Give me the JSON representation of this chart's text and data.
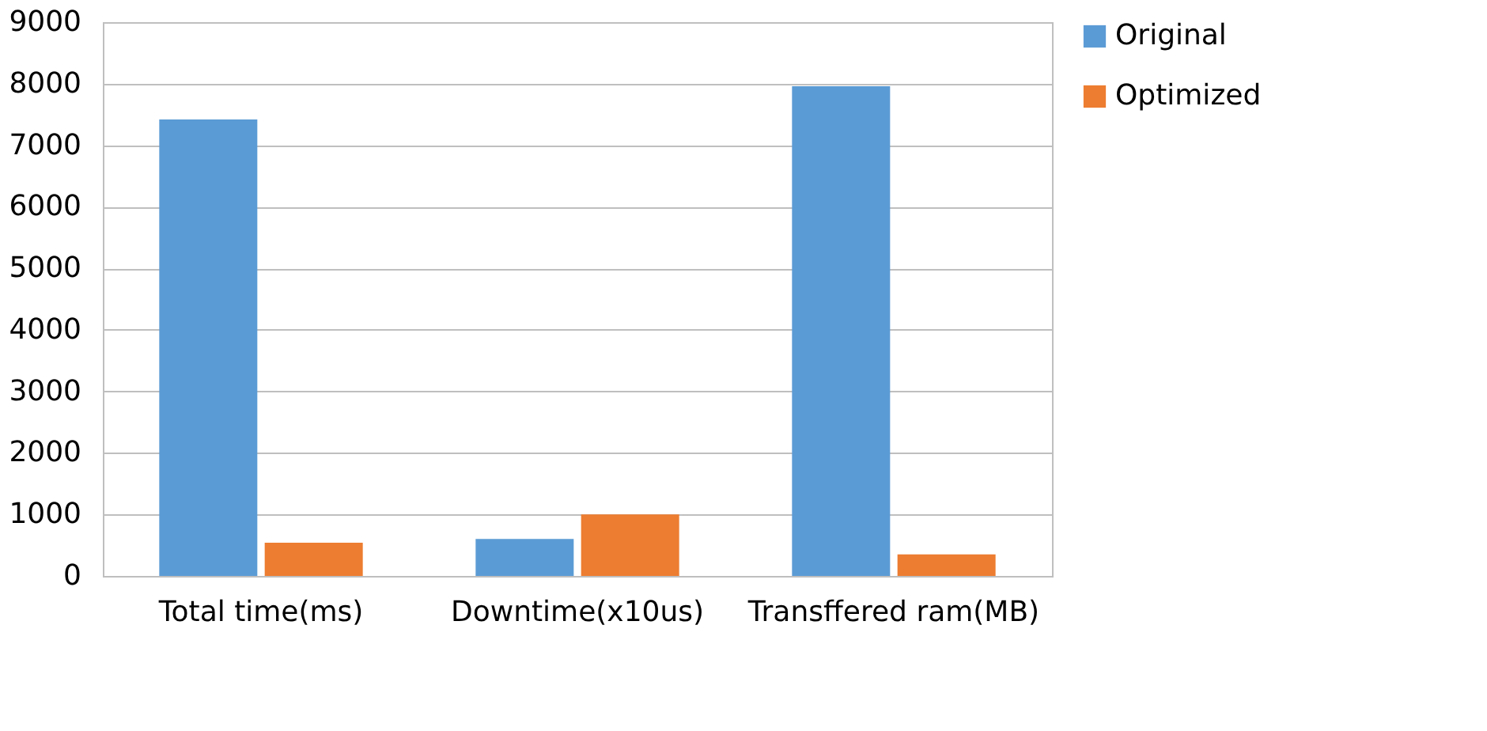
{
  "chart_data": {
    "type": "bar",
    "categories": [
      "Total time(ms)",
      "Downtime(x10us)",
      "Transffered ram(MB)"
    ],
    "series": [
      {
        "name": "Original",
        "color": "#5b9bd5",
        "values": [
          7420,
          600,
          7960
        ]
      },
      {
        "name": "Optimized",
        "color": "#ed7d31",
        "values": [
          540,
          1000,
          350
        ]
      }
    ],
    "ylim": [
      0,
      9000
    ],
    "yticks": [
      0,
      1000,
      2000,
      3000,
      4000,
      5000,
      6000,
      7000,
      8000,
      9000
    ],
    "grid": "y",
    "legend": "right"
  }
}
